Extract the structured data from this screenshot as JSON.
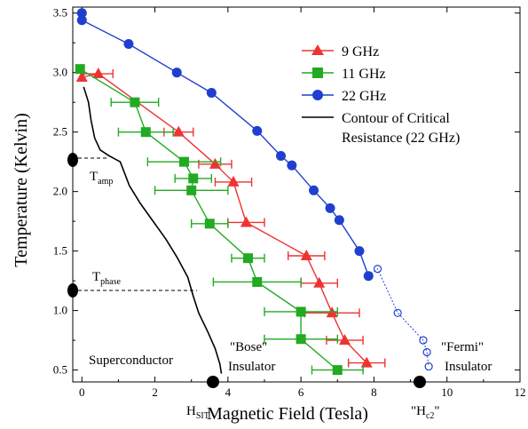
{
  "chart_data": {
    "type": "scatter",
    "title": "",
    "xlabel": "Magnetic Field (Tesla)",
    "ylabel": "Temperature (Kelvin)",
    "xlim": [
      -0.25,
      12
    ],
    "ylim": [
      0.4,
      3.55
    ],
    "xticks": [
      0,
      2,
      4,
      6,
      8,
      10,
      12
    ],
    "yticks": [
      0.5,
      1.0,
      1.5,
      2.0,
      2.5,
      3.0,
      3.5
    ],
    "grid": false,
    "legend_position": "top-right",
    "series": [
      {
        "name": "9 GHz",
        "marker": "triangle",
        "color": "#ee3333",
        "points": [
          {
            "x": 0.0,
            "y": 2.96
          },
          {
            "x": 0.45,
            "y": 2.99,
            "xerr": 0.4
          },
          {
            "x": 2.65,
            "y": 2.5,
            "xerr": 0.4
          },
          {
            "x": 3.65,
            "y": 2.23,
            "xerr": 0.45
          },
          {
            "x": 4.15,
            "y": 2.08,
            "xerr": 0.5
          },
          {
            "x": 4.5,
            "y": 1.74,
            "xerr": 0.5
          },
          {
            "x": 6.15,
            "y": 1.46,
            "xerr": 0.5
          },
          {
            "x": 6.5,
            "y": 1.23,
            "xerr": 0.5
          },
          {
            "x": 6.85,
            "y": 0.98,
            "xerr": 0.75
          },
          {
            "x": 7.2,
            "y": 0.75,
            "xerr": 0.5
          },
          {
            "x": 7.8,
            "y": 0.56,
            "xerr": 0.5
          }
        ]
      },
      {
        "name": "11 GHz",
        "marker": "square",
        "color": "#22aa22",
        "points": [
          {
            "x": -0.05,
            "y": 3.03
          },
          {
            "x": 1.45,
            "y": 2.75,
            "xerr": 0.65
          },
          {
            "x": 1.75,
            "y": 2.5,
            "xerr": 0.75
          },
          {
            "x": 2.8,
            "y": 2.25,
            "xerr": 1.0
          },
          {
            "x": 3.05,
            "y": 2.11,
            "xerr": 0.5
          },
          {
            "x": 3.0,
            "y": 2.01,
            "xerr": 1.0
          },
          {
            "x": 3.5,
            "y": 1.73,
            "xerr": 0.5
          },
          {
            "x": 4.55,
            "y": 1.44,
            "xerr": 0.45
          },
          {
            "x": 4.8,
            "y": 1.24,
            "xerr": 1.2
          },
          {
            "x": 6.0,
            "y": 0.99,
            "xerr": 1.0
          },
          {
            "x": 6.0,
            "y": 0.76,
            "xerr": 1.0
          },
          {
            "x": 7.0,
            "y": 0.5,
            "xerr": 0.7
          }
        ]
      },
      {
        "name": "22 GHz",
        "marker": "circle",
        "color": "#1f3fd0",
        "points": [
          {
            "x": 0.0,
            "y": 3.5
          },
          {
            "x": 0.0,
            "y": 3.44
          },
          {
            "x": 1.28,
            "y": 3.24
          },
          {
            "x": 2.6,
            "y": 3.0
          },
          {
            "x": 3.55,
            "y": 2.83
          },
          {
            "x": 4.8,
            "y": 2.51
          },
          {
            "x": 5.45,
            "y": 2.3
          },
          {
            "x": 5.75,
            "y": 2.22
          },
          {
            "x": 6.35,
            "y": 2.01
          },
          {
            "x": 6.8,
            "y": 1.86
          },
          {
            "x": 7.05,
            "y": 1.76
          },
          {
            "x": 7.6,
            "y": 1.5
          },
          {
            "x": 7.85,
            "y": 1.29
          },
          {
            "x": 8.1,
            "y": 1.35,
            "hollow": true
          },
          {
            "x": 8.65,
            "y": 0.98,
            "hollow": true
          },
          {
            "x": 9.35,
            "y": 0.75,
            "hollow": true
          },
          {
            "x": 9.45,
            "y": 0.65,
            "hollow": true
          },
          {
            "x": 9.5,
            "y": 0.53,
            "hollow": true
          }
        ]
      }
    ],
    "contour": {
      "name": "Contour of Critical Resistance (22 GHz)",
      "color": "#000000",
      "points": [
        {
          "x": 0.05,
          "y": 2.88
        },
        {
          "x": 0.18,
          "y": 2.75
        },
        {
          "x": 0.25,
          "y": 2.6
        },
        {
          "x": 0.35,
          "y": 2.45
        },
        {
          "x": 0.5,
          "y": 2.35
        },
        {
          "x": 0.75,
          "y": 2.3
        },
        {
          "x": 1.05,
          "y": 2.25
        },
        {
          "x": 1.3,
          "y": 2.05
        },
        {
          "x": 1.6,
          "y": 1.9
        },
        {
          "x": 1.95,
          "y": 1.75
        },
        {
          "x": 2.3,
          "y": 1.6
        },
        {
          "x": 2.6,
          "y": 1.45
        },
        {
          "x": 2.9,
          "y": 1.28
        },
        {
          "x": 3.05,
          "y": 1.12
        },
        {
          "x": 3.2,
          "y": 0.98
        },
        {
          "x": 3.45,
          "y": 0.82
        },
        {
          "x": 3.65,
          "y": 0.68
        },
        {
          "x": 3.78,
          "y": 0.55
        },
        {
          "x": 3.82,
          "y": 0.47
        }
      ]
    },
    "annotations": {
      "t_amp": {
        "main": "T",
        "sub": "amp",
        "y": 2.29
      },
      "t_phase": {
        "main": "T",
        "sub": "phase",
        "y": 1.16
      },
      "h_sit": {
        "main": "H",
        "sub": "SIT",
        "x": 3.7
      },
      "h_c2": {
        "main": "\"H",
        "sub": "c2",
        "tail": "\"",
        "x": 9.6
      },
      "superconductor": "Superconductor",
      "bose_line1": "\"Bose\"",
      "bose_line2": "Insulator",
      "fermi_line1": "\"Fermi\"",
      "fermi_line2": "Insulator"
    }
  }
}
